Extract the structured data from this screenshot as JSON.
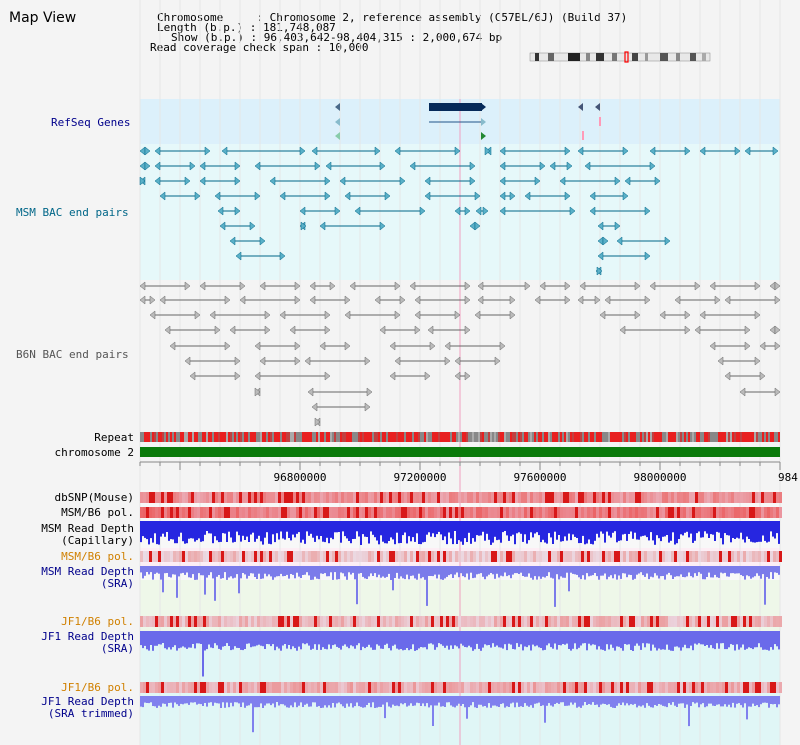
{
  "map": {
    "title": "Map View",
    "chromosome_line": "Chromosome     : Chromosome 2, reference assembly (C57BL/6J) (Build 37)",
    "length_line": "Length (b.p.) : 181,748,087",
    "show_line": "Show (b.p.) : 96,403,642-98,404,315 : 2,000,674 bp",
    "coverage_line": "Read coverage check span : 10,000"
  },
  "tracks": {
    "refseq": "RefSeq Genes",
    "msm_bac": "MSM BAC end pairs",
    "b6n_bac": "B6N BAC end pairs",
    "repeat": "Repeat",
    "chromosome": "chromosome 2",
    "dbsnp": "dbSNP(Mouse)",
    "msm_b6_pol_1": "MSM/B6 pol.",
    "msm_read_depth_cap_1": "MSM Read Depth",
    "msm_read_depth_cap_2": "(Capillary)",
    "msm_b6_pol_2": "MSM/B6 pol.",
    "msm_read_depth_sra_1": "MSM Read Depth",
    "msm_read_depth_sra_2": "(SRA)",
    "jf1_b6_pol_1": "JF1/B6 pol.",
    "jf1_read_depth_sra_1": "JF1 Read Depth",
    "jf1_read_depth_sra_2": "(SRA)",
    "jf1_b6_pol_2": "JF1/B6 pol.",
    "jf1_read_depth_trim_1": "JF1 Read Depth",
    "jf1_read_depth_trim_2": "(SRA trimmed)"
  },
  "axis": {
    "ticks": [
      "96800000",
      "97200000",
      "97600000",
      "98000000",
      "984"
    ]
  },
  "colors": {
    "navy": "#00008b",
    "teal": "#006688",
    "gray": "#555555",
    "orange": "#d08000",
    "green": "#006400",
    "blue": "#2020e0"
  }
}
